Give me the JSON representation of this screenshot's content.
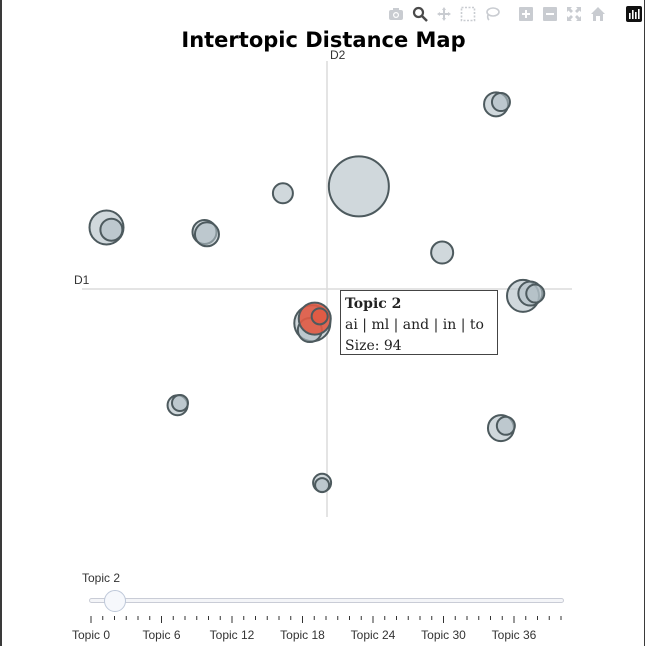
{
  "modebar": {
    "icons": [
      "camera-icon",
      "zoom-icon",
      "pan-icon",
      "box-select-icon",
      "lasso-icon",
      "zoom-in-icon",
      "zoom-out-icon",
      "autoscale-icon",
      "reset-axes-icon",
      "plotly-logo-icon"
    ]
  },
  "chart_data": {
    "type": "scatter",
    "title": "Intertopic Distance Map",
    "xlabel": "D1",
    "ylabel": "D2",
    "grid": false,
    "legend": "none",
    "xlim": [
      -1,
      1
    ],
    "ylim": [
      -1,
      1
    ],
    "bubble_color": "#b0bec5",
    "highlight_color": "#e05a44",
    "series": [
      {
        "points": [
          {
            "x": 0.69,
            "y": 0.81,
            "size": 12
          },
          {
            "x": 0.71,
            "y": 0.82,
            "size": 9
          },
          {
            "x": 0.13,
            "y": 0.45,
            "size": 30
          },
          {
            "x": -0.18,
            "y": 0.42,
            "size": 10
          },
          {
            "x": -0.9,
            "y": 0.27,
            "size": 17
          },
          {
            "x": -0.88,
            "y": 0.26,
            "size": 11
          },
          {
            "x": -0.5,
            "y": 0.25,
            "size": 12
          },
          {
            "x": -0.49,
            "y": 0.24,
            "size": 12
          },
          {
            "x": 0.47,
            "y": 0.16,
            "size": 11
          },
          {
            "x": 0.8,
            "y": -0.03,
            "size": 16
          },
          {
            "x": 0.83,
            "y": -0.02,
            "size": 12
          },
          {
            "x": 0.85,
            "y": -0.02,
            "size": 9
          },
          {
            "x": -0.06,
            "y": -0.15,
            "size": 18
          },
          {
            "x": -0.07,
            "y": -0.18,
            "size": 12
          },
          {
            "x": -0.61,
            "y": -0.51,
            "size": 10
          },
          {
            "x": -0.6,
            "y": -0.5,
            "size": 8
          },
          {
            "x": 0.71,
            "y": -0.61,
            "size": 13
          },
          {
            "x": 0.73,
            "y": -0.6,
            "size": 9
          },
          {
            "x": -0.02,
            "y": -0.85,
            "size": 9
          },
          {
            "x": -0.02,
            "y": -0.86,
            "size": 7
          }
        ]
      },
      {
        "name": "Topic 2",
        "points": [
          {
            "x": -0.05,
            "y": -0.13,
            "size": 16
          },
          {
            "x": -0.03,
            "y": -0.12,
            "size": 8
          }
        ]
      }
    ]
  },
  "hover": {
    "title": "Topic 2",
    "words": "ai | ml | and | in | to",
    "size_text": "Size: 94"
  },
  "slider": {
    "current_label": "Topic 2",
    "tick_labels": [
      "Topic 0",
      "Topic 6",
      "Topic 12",
      "Topic 18",
      "Topic 24",
      "Topic 30",
      "Topic 36"
    ],
    "value": 2,
    "min": 0,
    "max": 40
  }
}
